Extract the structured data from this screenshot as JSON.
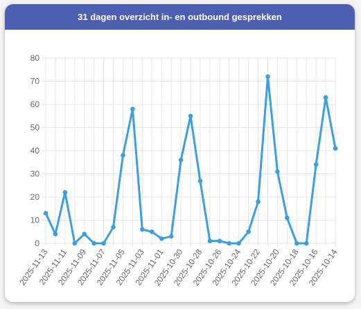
{
  "header": {
    "title": "31 dagen overzicht in- en outbound gesprekken"
  },
  "colors": {
    "header_bg": "#4d5fb3",
    "line": "#3b9ee0",
    "grid": "#e5e5e5"
  },
  "chart_data": {
    "type": "line",
    "title": "31 dagen overzicht in- en outbound gesprekken",
    "xlabel": "",
    "ylabel": "",
    "ylim": [
      0,
      80
    ],
    "yticks": [
      0,
      10,
      20,
      30,
      40,
      50,
      60,
      70,
      80
    ],
    "grid": true,
    "legend": "none",
    "x": [
      "2025-11-13",
      "2025-11-12",
      "2025-11-11",
      "2025-11-10",
      "2025-11-09",
      "2025-11-08",
      "2025-11-07",
      "2025-11-06",
      "2025-11-05",
      "2025-11-04",
      "2025-11-03",
      "2025-11-02",
      "2025-11-01",
      "2025-10-31",
      "2025-10-30",
      "2025-10-29",
      "2025-10-28",
      "2025-10-27",
      "2025-10-26",
      "2025-10-25",
      "2025-10-24",
      "2025-10-23",
      "2025-10-22",
      "2025-10-21",
      "2025-10-20",
      "2025-10-19",
      "2025-10-18",
      "2025-10-17",
      "2025-10-16",
      "2025-10-15",
      "2025-10-14"
    ],
    "tick_labels_shown": [
      "2025-11-13",
      "2025-11-11",
      "2025-11-09",
      "2025-11-07",
      "2025-11-05",
      "2025-11-03",
      "2025-11-01",
      "2025-10-30",
      "2025-10-28",
      "2025-10-26",
      "2025-10-24",
      "2025-10-22",
      "2025-10-20",
      "2025-10-18",
      "2025-10-16",
      "2025-10-14"
    ],
    "series": [
      {
        "values": [
          13,
          4,
          22,
          0,
          4,
          0,
          0,
          7,
          38,
          58,
          6,
          5,
          2,
          3,
          36,
          55,
          27,
          1,
          1,
          0,
          0,
          5,
          18,
          72,
          31,
          11,
          0,
          0,
          34,
          63,
          41
        ]
      }
    ]
  }
}
